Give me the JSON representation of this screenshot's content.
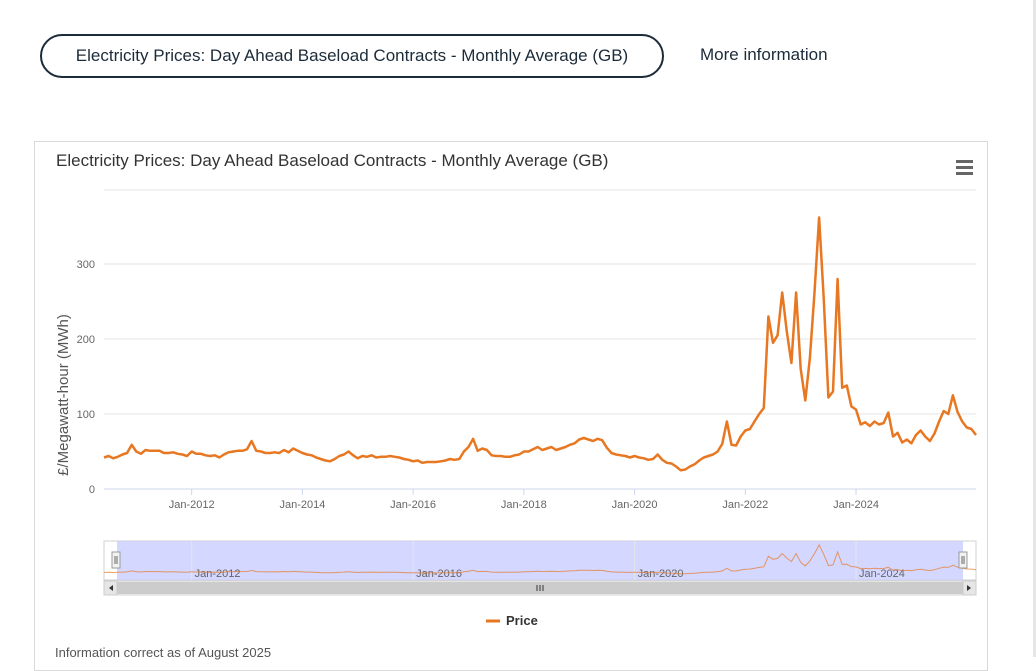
{
  "header": {
    "chart_button_label": "Electricity Prices: Day Ahead Baseload Contracts - Monthly Average (GB)",
    "more_info_label": "More information"
  },
  "footnote": "Information correct as of August 2025",
  "menu_icon": "hamburger-menu-icon",
  "colors": {
    "series": "#e87722",
    "navigator_fill": "#ccd0ff",
    "grid": "#e6e6e6"
  },
  "chart_data": {
    "type": "line",
    "title": "Electricity Prices: Day Ahead Baseload Contracts - Monthly Average (GB)",
    "xlabel": "",
    "ylabel": "£/Megawatt-hour (MWh)",
    "ylim": [
      0,
      400
    ],
    "yticks": [
      0,
      100,
      200,
      300
    ],
    "xticks": [
      "Jan-2012",
      "Jan-2014",
      "Jan-2016",
      "Jan-2018",
      "Jan-2020",
      "Jan-2022",
      "Jan-2024"
    ],
    "navigator_ticks": [
      "Jan-2012",
      "Jan-2016",
      "Jan-2020",
      "Jan-2024"
    ],
    "x_start": "2010-06",
    "grid": true,
    "legend_position": "bottom-center",
    "series": [
      {
        "name": "Price",
        "values": [
          42,
          44,
          41,
          43,
          46,
          48,
          59,
          50,
          47,
          52,
          51,
          51,
          51,
          48,
          48,
          49,
          47,
          46,
          44,
          50,
          47,
          47,
          45,
          44,
          45,
          42,
          46,
          49,
          50,
          51,
          51,
          53,
          64,
          51,
          50,
          48,
          48,
          49,
          48,
          52,
          49,
          54,
          51,
          48,
          46,
          45,
          42,
          40,
          38,
          37,
          40,
          44,
          46,
          50,
          45,
          41,
          44,
          43,
          45,
          42,
          43,
          43,
          44,
          43,
          42,
          40,
          39,
          37,
          38,
          35,
          36,
          36,
          36,
          37,
          38,
          40,
          39,
          40,
          50,
          56,
          67,
          51,
          54,
          52,
          45,
          44,
          44,
          43,
          43,
          45,
          46,
          50,
          50,
          53,
          56,
          52,
          54,
          56,
          52,
          54,
          56,
          59,
          61,
          66,
          68,
          66,
          64,
          67,
          65,
          55,
          48,
          46,
          45,
          44,
          42,
          44,
          42,
          41,
          39,
          40,
          46,
          39,
          35,
          34,
          30,
          25,
          26,
          30,
          33,
          38,
          42,
          44,
          46,
          50,
          60,
          90,
          59,
          58,
          70,
          78,
          80,
          90,
          100,
          108,
          230,
          195,
          205,
          262,
          210,
          168,
          262,
          160,
          118,
          175,
          262,
          362,
          255,
          122,
          130,
          280,
          135,
          138,
          110,
          106,
          86,
          89,
          84,
          90,
          86,
          88,
          102,
          70,
          75,
          62,
          66,
          61,
          72,
          78,
          70,
          64,
          74,
          90,
          104,
          100,
          125,
          103,
          90,
          82,
          80,
          72
        ]
      }
    ]
  }
}
